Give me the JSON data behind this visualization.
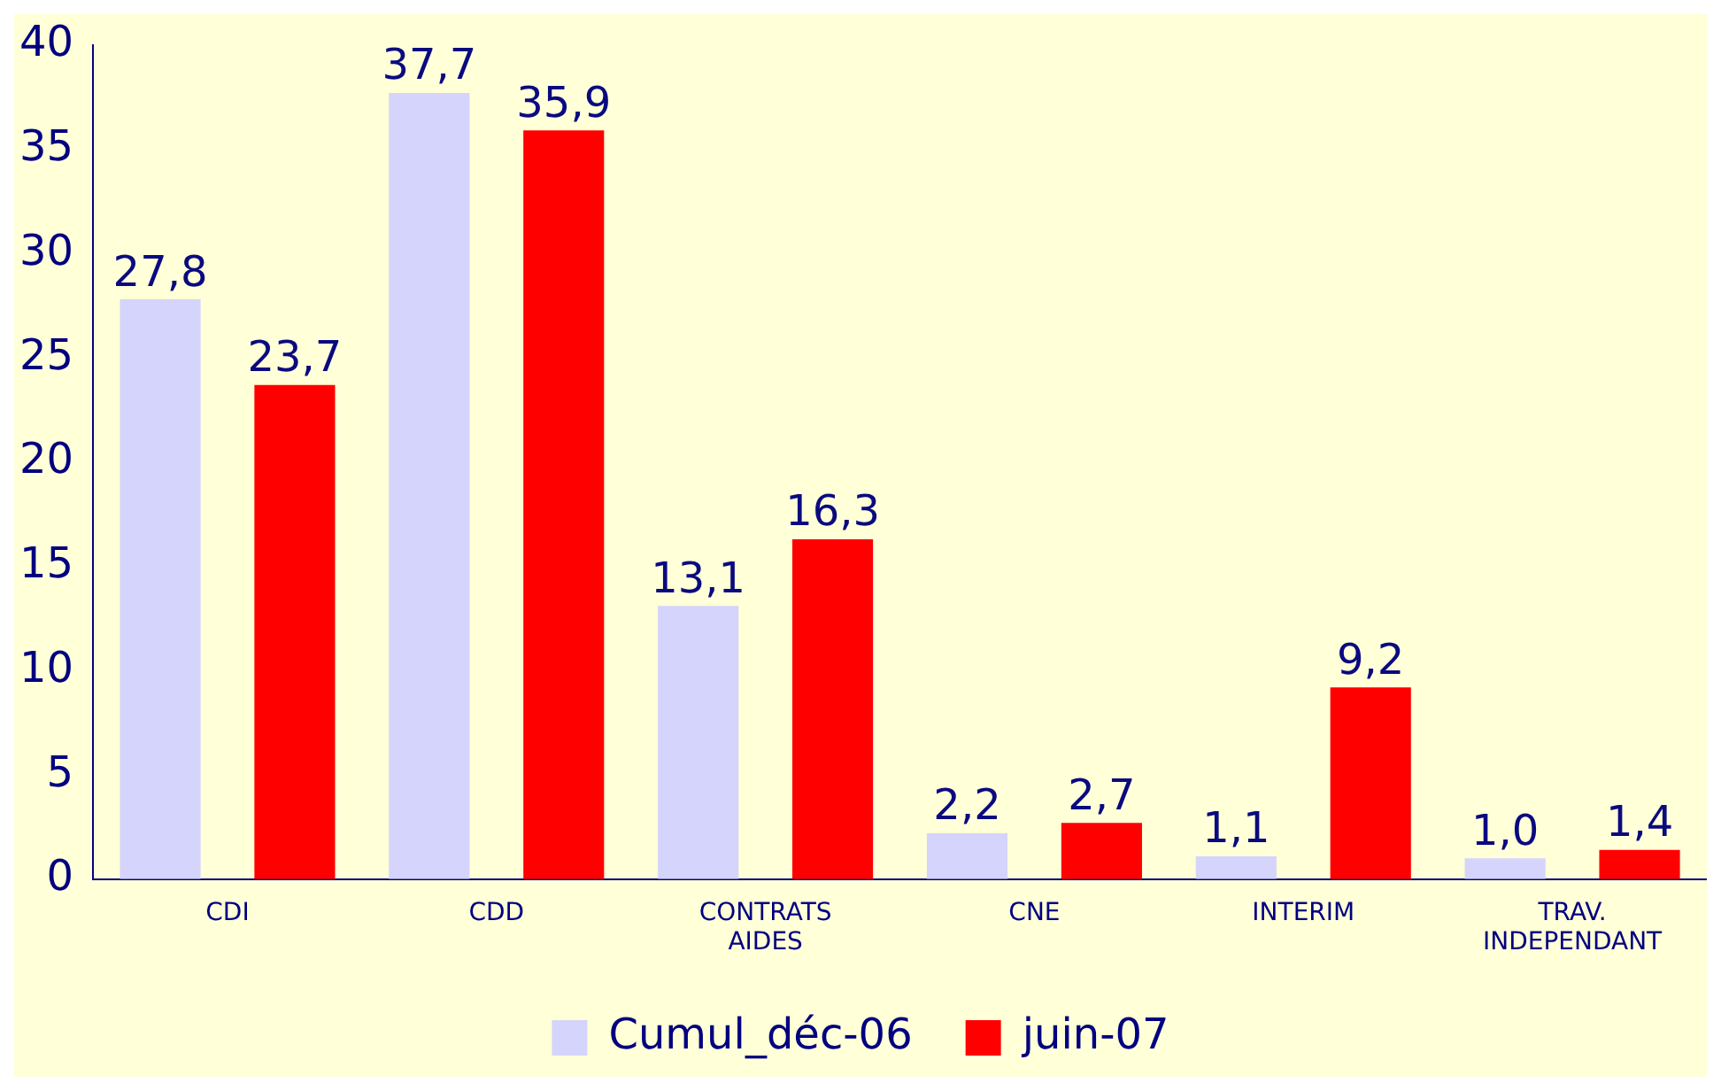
{
  "chart_data": {
    "type": "bar",
    "categories": [
      "CDI",
      "CDD",
      "CONTRATS AIDES",
      "CNE",
      "INTERIM",
      "TRAV. INDEPENDANT"
    ],
    "series": [
      {
        "name": "Cumul_déc-06",
        "color": "#d4d4fc",
        "values": [
          27.8,
          37.7,
          13.1,
          2.2,
          1.1,
          1.0
        ],
        "value_labels": [
          "27,8",
          "37,7",
          "13,1",
          "2,2",
          "1,1",
          "1,0"
        ]
      },
      {
        "name": "juin-07",
        "color": "#ff0000",
        "values": [
          23.7,
          35.9,
          16.3,
          2.7,
          9.2,
          1.4
        ],
        "value_labels": [
          "23,7",
          "35,9",
          "16,3",
          "2,7",
          "9,2",
          "1,4"
        ]
      }
    ],
    "ylim": [
      0,
      40
    ],
    "yticks": [
      0,
      5,
      10,
      15,
      20,
      25,
      30,
      35,
      40
    ],
    "grid": false,
    "legend": "bottom"
  }
}
